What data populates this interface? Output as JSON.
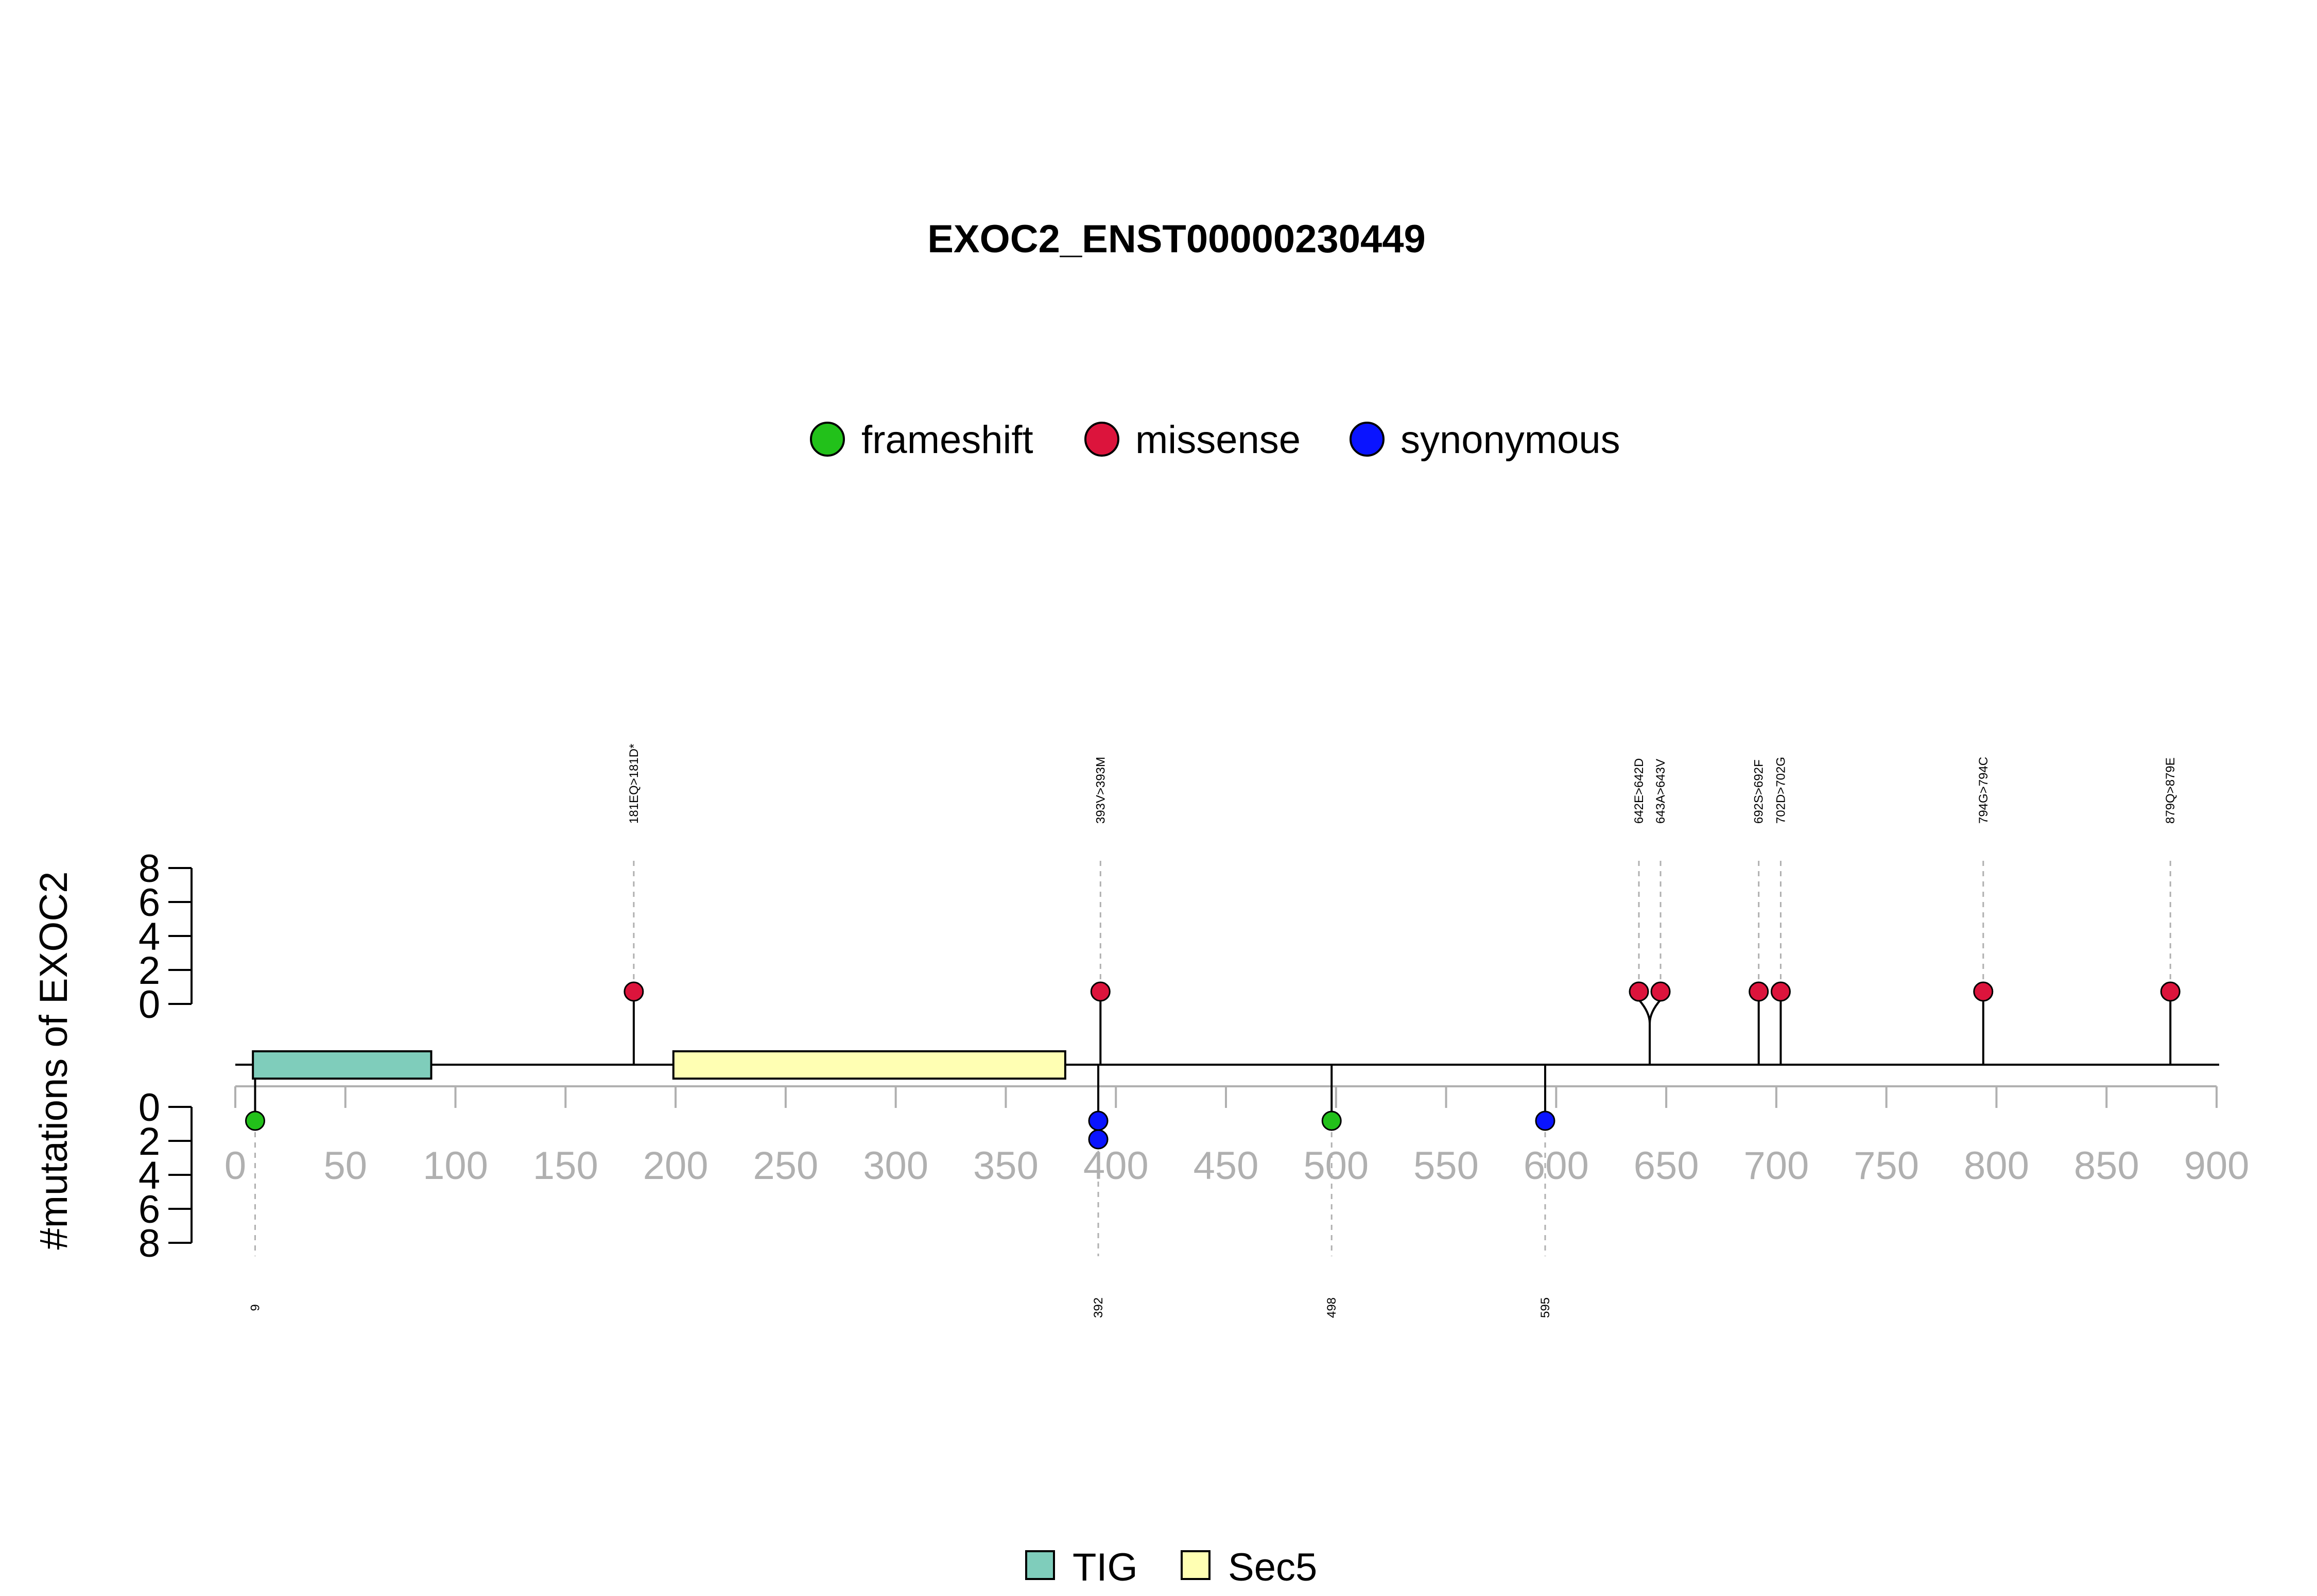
{
  "chart_data": {
    "type": "lollipop",
    "title": "EXOC2_ENST00000230449",
    "ylabel": "#mutations of EXOC2",
    "xlim": [
      0,
      900
    ],
    "x_ticks": [
      0,
      50,
      100,
      150,
      200,
      250,
      300,
      350,
      400,
      450,
      500,
      550,
      600,
      650,
      700,
      750,
      800,
      850,
      900
    ],
    "y_ticks_upper": [
      0,
      2,
      4,
      6,
      8
    ],
    "y_ticks_lower": [
      0,
      2,
      4,
      6,
      8
    ],
    "legend_mutation": [
      {
        "name": "frameshift",
        "color": "#22c11a"
      },
      {
        "name": "missense",
        "color": "#dc143c"
      },
      {
        "name": "synonymous",
        "color": "#0a14ff"
      }
    ],
    "legend_domain": [
      {
        "name": "TIG",
        "color": "#7fcdbb"
      },
      {
        "name": "Sec5",
        "color": "#ffffb3"
      }
    ],
    "domains": [
      {
        "name": "TIG",
        "start": 8,
        "end": 89,
        "color": "#7fcdbb"
      },
      {
        "name": "Sec5",
        "start": 199,
        "end": 377,
        "color": "#ffffb3"
      }
    ],
    "upper_mutations": [
      {
        "pos": 181,
        "label": "181EQ>181D*",
        "type": "missense",
        "count": 1
      },
      {
        "pos": 393,
        "label": "393V>393M",
        "type": "missense",
        "count": 1
      },
      {
        "pos": 642,
        "label": "642E>642D",
        "type": "missense",
        "count": 1
      },
      {
        "pos": 643,
        "label": "643A>643V",
        "type": "missense",
        "count": 1
      },
      {
        "pos": 692,
        "label": "692S>692F",
        "type": "missense",
        "count": 1
      },
      {
        "pos": 702,
        "label": "702D>702G",
        "type": "missense",
        "count": 1
      },
      {
        "pos": 794,
        "label": "794G>794C",
        "type": "missense",
        "count": 1
      },
      {
        "pos": 879,
        "label": "879Q>879E",
        "type": "missense",
        "count": 1
      }
    ],
    "lower_mutations": [
      {
        "pos": 9,
        "label": "9",
        "type": "frameshift",
        "count": 1
      },
      {
        "pos": 392,
        "label": "392",
        "type": "synonymous",
        "count": 2
      },
      {
        "pos": 498,
        "label": "498",
        "type": "frameshift",
        "count": 1
      },
      {
        "pos": 595,
        "label": "595",
        "type": "synonymous",
        "count": 1
      }
    ]
  }
}
